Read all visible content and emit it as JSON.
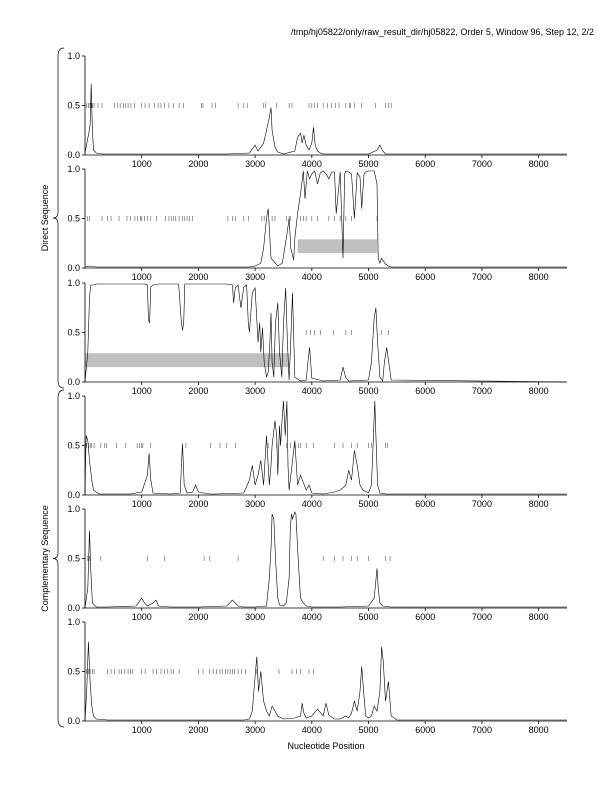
{
  "header": {
    "title": "/tmp/hj05822/only/raw_result_dir/hj05822, Order 5, Window 96, Step 12, 2/2"
  },
  "colors": {
    "trace": "#000000",
    "axis": "#000000",
    "band": "#c0c0c0"
  },
  "chart_data": [
    {
      "type": "line",
      "group": "direct",
      "xlim": [
        0,
        8500
      ],
      "ylim": [
        0,
        1
      ],
      "x_ticks": [
        1000,
        2000,
        3000,
        4000,
        5000,
        6000,
        7000,
        8000
      ],
      "y_ticks": [
        0.0,
        0.5,
        1.0
      ],
      "y_tick_labels": [
        "0.0",
        "0.5",
        "1.0"
      ],
      "x": [
        0,
        60,
        90,
        110,
        130,
        150,
        200,
        300,
        500,
        1000,
        1500,
        2000,
        2500,
        2900,
        2950,
        3000,
        3050,
        3150,
        3200,
        3250,
        3280,
        3300,
        3350,
        3400,
        3500,
        3700,
        3750,
        3800,
        3830,
        3860,
        3900,
        3950,
        4000,
        4030,
        4060,
        4100,
        4150,
        4200,
        4500,
        5000,
        5150,
        5200,
        5250,
        5300,
        5400,
        8500
      ],
      "y": [
        0.02,
        0.2,
        0.3,
        0.72,
        0.25,
        0.05,
        0.02,
        0.01,
        0.01,
        0.01,
        0.01,
        0.01,
        0.01,
        0.02,
        0.06,
        0.1,
        0.04,
        0.12,
        0.25,
        0.38,
        0.48,
        0.25,
        0.08,
        0.03,
        0.01,
        0.04,
        0.18,
        0.22,
        0.12,
        0.2,
        0.1,
        0.05,
        0.12,
        0.28,
        0.1,
        0.04,
        0.02,
        0.01,
        0.01,
        0.01,
        0.05,
        0.1,
        0.04,
        0.01,
        0.01,
        0.01
      ],
      "markers_x": [
        30,
        60,
        90,
        110,
        130,
        160,
        230,
        300,
        520,
        570,
        620,
        680,
        720,
        760,
        810,
        870,
        1000,
        1060,
        1130,
        1230,
        1290,
        1340,
        1400,
        1480,
        1560,
        1660,
        1740,
        2050,
        2080,
        2240,
        2300,
        2700,
        2800,
        2860,
        3150,
        3180,
        3380,
        3600,
        3650,
        3950,
        4000,
        4050,
        4100,
        4200,
        4280,
        4350,
        4420,
        4480,
        4600,
        4660,
        4680,
        4750,
        4880,
        5120,
        5300,
        5350,
        5400
      ],
      "bands": []
    },
    {
      "type": "line",
      "group": "direct",
      "xlim": [
        0,
        8500
      ],
      "ylim": [
        0,
        1
      ],
      "x_ticks": [
        1000,
        2000,
        3000,
        4000,
        5000,
        6000,
        7000,
        8000
      ],
      "y_ticks": [
        0.0,
        0.5,
        1.0
      ],
      "y_tick_labels": [
        "0.0",
        "0.5",
        "1.0"
      ],
      "x": [
        0,
        100,
        200,
        500,
        1000,
        2000,
        2900,
        3000,
        3100,
        3150,
        3200,
        3230,
        3280,
        3400,
        3480,
        3550,
        3600,
        3630,
        3680,
        3700,
        3750,
        3800,
        3850,
        3880,
        3920,
        3960,
        4000,
        4050,
        4100,
        4150,
        4200,
        4250,
        4300,
        4350,
        4400,
        4430,
        4500,
        4550,
        4580,
        4600,
        4650,
        4700,
        4750,
        4800,
        4850,
        4880,
        4920,
        4950,
        5000,
        5050,
        5100,
        5150,
        5170,
        5200,
        5230,
        5250,
        5300,
        5350,
        5400,
        8500
      ],
      "y": [
        0.01,
        0.02,
        0.01,
        0.01,
        0.01,
        0.01,
        0.01,
        0.02,
        0.05,
        0.2,
        0.5,
        0.6,
        0.1,
        0.02,
        0.05,
        0.3,
        0.5,
        0.2,
        0.08,
        0.3,
        0.55,
        0.75,
        0.98,
        0.7,
        0.98,
        0.9,
        0.95,
        0.98,
        0.85,
        0.96,
        0.98,
        0.95,
        0.9,
        0.97,
        0.97,
        0.55,
        0.97,
        0.1,
        0.95,
        0.98,
        0.97,
        0.95,
        0.5,
        0.96,
        0.92,
        0.6,
        0.95,
        0.97,
        0.98,
        0.98,
        0.98,
        0.85,
        0.1,
        0.05,
        0.1,
        0.08,
        0.04,
        0.02,
        0.01,
        0.01
      ],
      "markers_x": [
        40,
        80,
        300,
        400,
        460,
        600,
        740,
        800,
        880,
        930,
        980,
        1000,
        1050,
        1100,
        1160,
        1260,
        1420,
        1480,
        1520,
        1560,
        1600,
        1660,
        1720,
        1760,
        1800,
        1840,
        1900,
        2520,
        2600,
        2650,
        2800,
        2880,
        3120,
        3160,
        3300,
        3350,
        3550,
        3600,
        3620,
        3800,
        3850,
        3900,
        4000,
        4100,
        4300,
        4400,
        4500,
        4600,
        4700,
        5150
      ],
      "bands": [
        {
          "x0": 3750,
          "x1": 5150,
          "y0": 0.15,
          "y1": 0.29
        }
      ]
    },
    {
      "type": "line",
      "group": "direct",
      "xlim": [
        0,
        8500
      ],
      "ylim": [
        0,
        1
      ],
      "x_ticks": [
        1000,
        2000,
        3000,
        4000,
        5000,
        6000,
        7000,
        8000
      ],
      "y_ticks": [
        0.0,
        0.5,
        1.0
      ],
      "y_tick_labels": [
        "0.0",
        "0.5",
        "1.0"
      ],
      "x": [
        0,
        50,
        80,
        100,
        150,
        200,
        500,
        800,
        1000,
        1050,
        1100,
        1120,
        1140,
        1160,
        1200,
        1300,
        1500,
        1650,
        1700,
        1720,
        1740,
        1760,
        1800,
        2000,
        2500,
        2600,
        2620,
        2650,
        2700,
        2750,
        2800,
        2850,
        2880,
        2900,
        2950,
        3000,
        3050,
        3080,
        3100,
        3130,
        3160,
        3200,
        3230,
        3260,
        3280,
        3300,
        3330,
        3360,
        3400,
        3430,
        3470,
        3500,
        3540,
        3570,
        3600,
        3620,
        3660,
        3700,
        3800,
        3900,
        3930,
        3960,
        4000,
        4200,
        4500,
        4550,
        4600,
        4650,
        5000,
        5050,
        5100,
        5130,
        5160,
        5200,
        5250,
        5280,
        5320,
        5400,
        8500
      ],
      "y": [
        0.0,
        0.3,
        0.85,
        0.98,
        0.98,
        0.99,
        0.99,
        0.99,
        0.99,
        0.99,
        0.98,
        0.62,
        0.6,
        0.96,
        0.98,
        0.99,
        0.99,
        0.99,
        0.6,
        0.52,
        0.6,
        0.99,
        0.99,
        0.99,
        0.99,
        0.98,
        0.8,
        0.95,
        0.98,
        0.75,
        0.96,
        0.98,
        0.6,
        0.5,
        0.9,
        0.95,
        0.4,
        0.6,
        0.3,
        0.55,
        0.2,
        0.05,
        0.1,
        0.4,
        0.7,
        0.2,
        0.05,
        0.6,
        0.8,
        0.3,
        0.05,
        0.6,
        0.95,
        0.4,
        0.02,
        0.3,
        0.9,
        0.05,
        0.01,
        0.02,
        0.2,
        0.35,
        0.04,
        0.01,
        0.02,
        0.15,
        0.04,
        0.01,
        0.02,
        0.2,
        0.65,
        0.75,
        0.4,
        0.05,
        0.01,
        0.2,
        0.35,
        0.02,
        0.0
      ],
      "markers_x": [
        3900,
        3980,
        4050,
        4150,
        4380,
        4600,
        4700,
        5230,
        5350
      ],
      "bands": [
        {
          "x0": 0,
          "x1": 3600,
          "y0": 0.15,
          "y1": 0.29
        }
      ]
    },
    {
      "type": "line",
      "group": "complementary",
      "xlim": [
        0,
        8500
      ],
      "ylim": [
        0,
        1
      ],
      "x_ticks": [
        1000,
        2000,
        3000,
        4000,
        5000,
        6000,
        7000,
        8000
      ],
      "y_ticks": [
        0.0,
        0.5,
        1.0
      ],
      "y_tick_labels": [
        "0.0",
        "0.5",
        "1.0"
      ],
      "x": [
        0,
        20,
        50,
        80,
        120,
        150,
        250,
        400,
        800,
        1000,
        1100,
        1130,
        1160,
        1200,
        1500,
        1680,
        1700,
        1720,
        1750,
        1800,
        1900,
        1950,
        2000,
        2200,
        2300,
        2800,
        2900,
        2950,
        3000,
        3050,
        3100,
        3150,
        3200,
        3230,
        3250,
        3280,
        3300,
        3350,
        3380,
        3400,
        3430,
        3450,
        3480,
        3500,
        3530,
        3560,
        3580,
        3600,
        3650,
        3700,
        3750,
        3800,
        3900,
        3950,
        4000,
        4200,
        4400,
        4500,
        4600,
        4650,
        4700,
        4750,
        4800,
        4850,
        4900,
        5000,
        5050,
        5080,
        5110,
        5130,
        5160,
        5200,
        5300,
        5400,
        8500
      ],
      "y": [
        0.0,
        0.6,
        0.55,
        0.35,
        0.15,
        0.05,
        0.01,
        0.01,
        0.01,
        0.03,
        0.2,
        0.42,
        0.15,
        0.02,
        0.01,
        0.02,
        0.3,
        0.52,
        0.1,
        0.02,
        0.03,
        0.1,
        0.03,
        0.01,
        0.01,
        0.02,
        0.15,
        0.3,
        0.1,
        0.2,
        0.35,
        0.1,
        0.6,
        0.3,
        0.1,
        0.3,
        0.5,
        0.75,
        0.6,
        0.2,
        0.7,
        0.5,
        0.8,
        0.95,
        0.6,
        0.95,
        0.3,
        0.05,
        0.3,
        0.55,
        0.1,
        0.2,
        0.05,
        0.1,
        0.02,
        0.01,
        0.03,
        0.05,
        0.1,
        0.25,
        0.15,
        0.45,
        0.3,
        0.1,
        0.05,
        0.02,
        0.1,
        0.5,
        0.95,
        0.6,
        0.1,
        0.02,
        0.01,
        0.01,
        0.01
      ],
      "markers_x": [
        30,
        60,
        90,
        110,
        160,
        280,
        340,
        380,
        560,
        720,
        920,
        960,
        1000,
        1020,
        1160,
        1780,
        2210,
        2380,
        2500,
        2650,
        3230,
        3380,
        3550,
        3620,
        3700,
        3760,
        3800,
        3900,
        4030,
        4400,
        4550,
        4700,
        4800,
        5000,
        5050,
        5300,
        5330
      ],
      "bands": []
    },
    {
      "type": "line",
      "group": "complementary",
      "xlim": [
        0,
        8500
      ],
      "ylim": [
        0,
        1
      ],
      "x_ticks": [
        1000,
        2000,
        3000,
        4000,
        5000,
        6000,
        7000,
        8000
      ],
      "y_ticks": [
        0.0,
        0.5,
        1.0
      ],
      "y_tick_labels": [
        "0.0",
        "0.5",
        "1.0"
      ],
      "x": [
        0,
        50,
        80,
        100,
        130,
        200,
        400,
        900,
        1000,
        1050,
        1100,
        1200,
        1250,
        1300,
        1500,
        2000,
        2500,
        2600,
        2650,
        2700,
        2800,
        3000,
        3200,
        3250,
        3280,
        3300,
        3330,
        3360,
        3400,
        3430,
        3500,
        3550,
        3600,
        3620,
        3640,
        3660,
        3700,
        3720,
        3750,
        3780,
        3800,
        3850,
        3900,
        4000,
        4500,
        5000,
        5100,
        5150,
        5170,
        5200,
        5250,
        5400,
        8500
      ],
      "y": [
        0.0,
        0.2,
        0.78,
        0.4,
        0.05,
        0.01,
        0.01,
        0.02,
        0.1,
        0.05,
        0.02,
        0.05,
        0.08,
        0.02,
        0.01,
        0.01,
        0.02,
        0.08,
        0.05,
        0.02,
        0.01,
        0.01,
        0.02,
        0.3,
        0.6,
        0.95,
        0.9,
        0.5,
        0.1,
        0.03,
        0.02,
        0.05,
        0.3,
        0.8,
        0.95,
        0.9,
        0.97,
        0.95,
        0.6,
        0.3,
        0.1,
        0.05,
        0.02,
        0.01,
        0.01,
        0.02,
        0.1,
        0.4,
        0.2,
        0.05,
        0.02,
        0.01,
        0.01
      ],
      "markers_x": [
        50,
        80,
        280,
        1100,
        1400,
        2100,
        2200,
        2700,
        4200,
        4400,
        4550,
        4700,
        4800,
        5000,
        5300,
        5380
      ],
      "bands": []
    },
    {
      "type": "line",
      "group": "complementary",
      "xlim": [
        0,
        8500
      ],
      "ylim": [
        0,
        1
      ],
      "x_ticks": [
        1000,
        2000,
        3000,
        4000,
        5000,
        6000,
        7000,
        8000
      ],
      "y_ticks": [
        0.0,
        0.5,
        1.0
      ],
      "y_tick_labels": [
        "0.0",
        "0.5",
        "1.0"
      ],
      "x": [
        0,
        30,
        60,
        90,
        120,
        150,
        200,
        400,
        1000,
        2000,
        2800,
        2900,
        2950,
        3000,
        3030,
        3060,
        3100,
        3150,
        3200,
        3250,
        3300,
        3400,
        3500,
        3700,
        3800,
        3830,
        3860,
        3900,
        4000,
        4100,
        4200,
        4250,
        4300,
        4400,
        4500,
        4600,
        4650,
        4700,
        4750,
        4800,
        4850,
        4880,
        4920,
        4950,
        5000,
        5050,
        5100,
        5150,
        5200,
        5230,
        5260,
        5300,
        5350,
        5400,
        5500,
        8500
      ],
      "y": [
        0.0,
        0.3,
        0.8,
        0.4,
        0.15,
        0.05,
        0.02,
        0.01,
        0.01,
        0.01,
        0.01,
        0.02,
        0.1,
        0.45,
        0.65,
        0.3,
        0.5,
        0.2,
        0.1,
        0.05,
        0.15,
        0.05,
        0.02,
        0.03,
        0.05,
        0.18,
        0.08,
        0.03,
        0.05,
        0.12,
        0.05,
        0.18,
        0.06,
        0.02,
        0.02,
        0.05,
        0.03,
        0.08,
        0.2,
        0.1,
        0.3,
        0.55,
        0.25,
        0.05,
        0.03,
        0.05,
        0.15,
        0.1,
        0.3,
        0.75,
        0.6,
        0.2,
        0.4,
        0.05,
        0.01,
        0.01
      ],
      "markers_x": [
        30,
        60,
        90,
        130,
        160,
        400,
        460,
        520,
        600,
        640,
        700,
        760,
        800,
        840,
        1000,
        1060,
        1200,
        1260,
        1340,
        1400,
        1460,
        1520,
        1560,
        1660,
        2000,
        2080,
        2200,
        2260,
        2320,
        2380,
        2420,
        2480,
        2520,
        2560,
        2600,
        2640,
        2700,
        2760,
        2830,
        3030,
        3420,
        3650,
        3730,
        3800,
        3950,
        4030
      ],
      "bands": []
    }
  ],
  "groups": [
    {
      "id": "direct",
      "label": "Direct Sequence"
    },
    {
      "id": "complementary",
      "label": "Complementary Sequence"
    }
  ],
  "x_axis_title": "Nucleotide Position"
}
